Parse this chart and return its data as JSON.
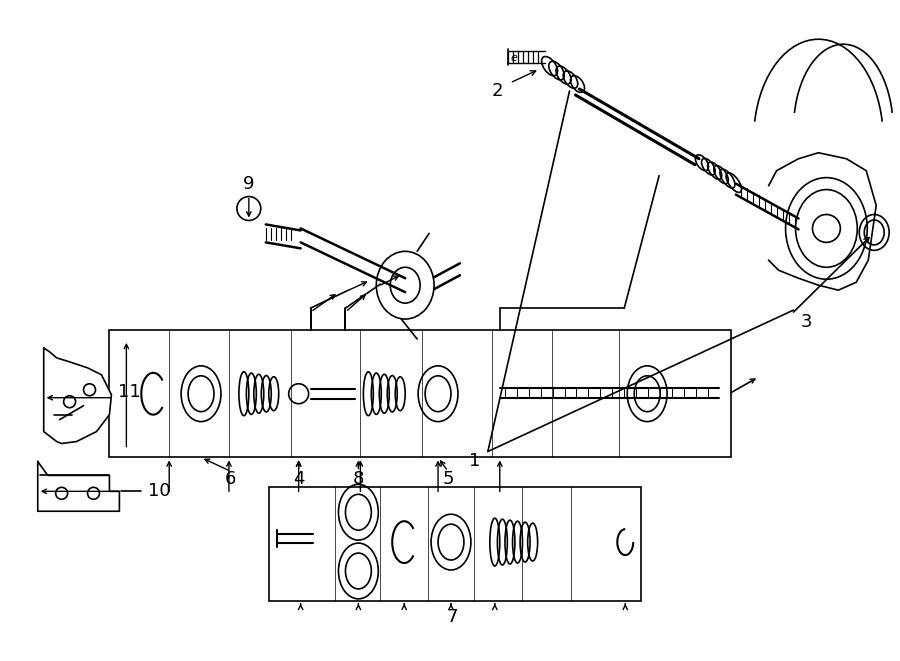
{
  "bg_color": "#ffffff",
  "line_color": "#000000",
  "label_fontsize": 13,
  "fig_width": 9.0,
  "fig_height": 6.61,
  "dpi": 100
}
